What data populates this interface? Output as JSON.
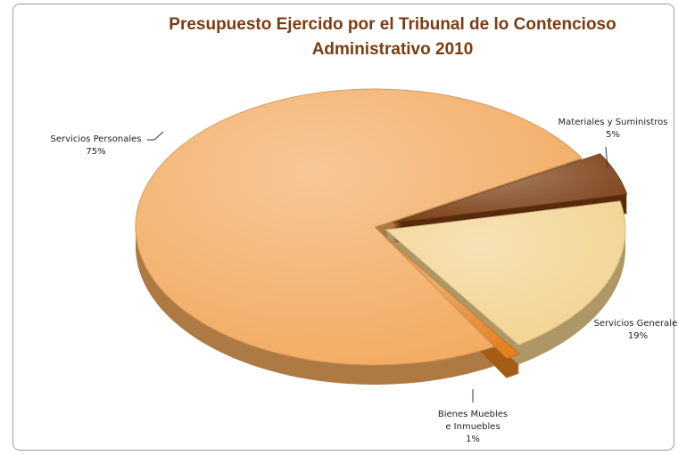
{
  "chart_data": {
    "type": "pie",
    "title": "Presupuesto Ejercido por el Tribunal de lo Contencioso Administrativo 2010",
    "categories": [
      "Materiales y Suministros",
      "Servicios Generales",
      "Bienes Muebles e Inmuebles",
      "Servicios Personales"
    ],
    "values": [
      5,
      19,
      1,
      75
    ],
    "value_labels": [
      "5%",
      "19%",
      "1%",
      "75%"
    ],
    "colors": [
      "#7a3c12",
      "#f2d28e",
      "#e4801f",
      "#f2a95e"
    ]
  }
}
